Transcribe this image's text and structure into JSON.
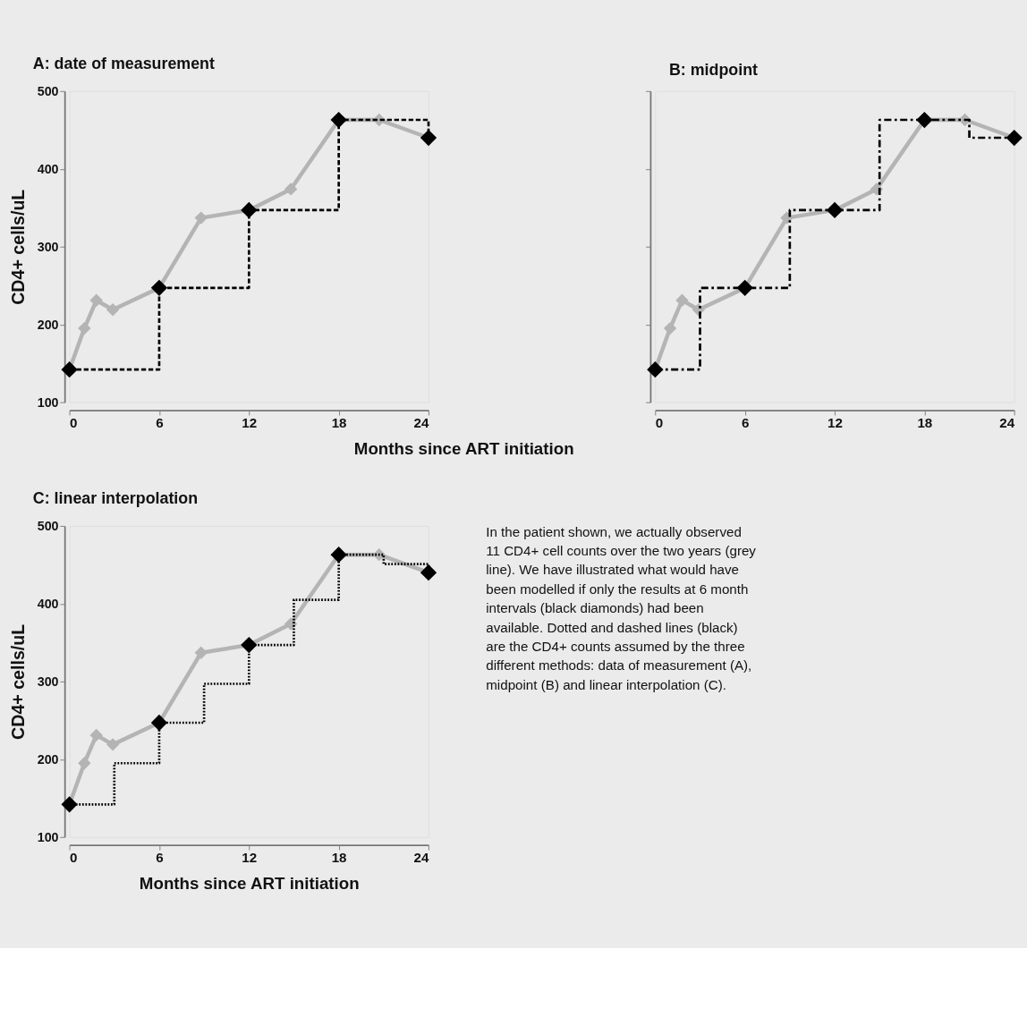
{
  "chart_data": [
    {
      "type": "line",
      "title": "A: date of measurement",
      "xlabel": "Months since ART initiation",
      "ylabel": "CD4+ cells/uL",
      "xlim": [
        0,
        24
      ],
      "xticks": [
        0,
        6,
        12,
        18,
        24
      ],
      "ylim": [
        100,
        500
      ],
      "yticks": [
        100,
        200,
        300,
        400,
        500
      ],
      "grid": false,
      "series": [
        {
          "color": "#b4b4b4",
          "marker": "diamond",
          "line_style": "solid",
          "x": [
            0,
            1,
            1.8,
            2.9,
            6,
            8.8,
            12,
            14.8,
            18,
            20.7,
            24
          ],
          "values": [
            142,
            195,
            231,
            219,
            247,
            337,
            347,
            374,
            463,
            463,
            440
          ]
        },
        {
          "type": "step",
          "color": "#000000",
          "line_style": "dashed",
          "x": [
            0,
            6,
            12,
            18,
            24
          ],
          "values": [
            142,
            247,
            347,
            463,
            440
          ]
        },
        {
          "type": "scatter",
          "color": "#000000",
          "marker": "diamond",
          "x": [
            0,
            6,
            12,
            18,
            24
          ],
          "values": [
            142,
            247,
            347,
            463,
            440
          ]
        }
      ]
    },
    {
      "type": "line",
      "title": "B: midpoint",
      "xlim": [
        0,
        24
      ],
      "xticks": [
        0,
        6,
        12,
        18,
        24
      ],
      "ylim": [
        100,
        500
      ],
      "yticks": [
        100,
        200,
        300,
        400,
        500
      ],
      "tick_labels": "x",
      "grid": false,
      "series": [
        {
          "color": "#b4b4b4",
          "marker": "diamond",
          "line_style": "solid",
          "x": [
            0,
            1,
            1.8,
            2.9,
            6,
            8.8,
            12,
            14.8,
            18,
            20.7,
            24
          ],
          "values": [
            142,
            195,
            231,
            219,
            247,
            337,
            347,
            374,
            463,
            463,
            440
          ]
        },
        {
          "type": "step",
          "color": "#000000",
          "line_style": "dashdot",
          "x": [
            0,
            3,
            9,
            15,
            21,
            24
          ],
          "values": [
            142,
            247,
            347,
            463,
            440,
            440
          ]
        },
        {
          "type": "scatter",
          "color": "#000000",
          "marker": "diamond",
          "x": [
            0,
            6,
            12,
            18,
            24
          ],
          "values": [
            142,
            247,
            347,
            463,
            440
          ]
        }
      ]
    },
    {
      "type": "line",
      "title": "C: linear interpolation",
      "xlabel": "Months since ART initiation",
      "ylabel": "CD4+ cells/uL",
      "xlim": [
        0,
        24
      ],
      "xticks": [
        0,
        6,
        12,
        18,
        24
      ],
      "ylim": [
        100,
        500
      ],
      "yticks": [
        100,
        200,
        300,
        400,
        500
      ],
      "grid": false,
      "annotations": [
        "In the patient shown, we actually observed 11 CD4+ cell counts over the two years (grey line). We have illustrated what would have been modelled if only the results at 6 month intervals (black diamonds) had been available. Dotted and dashed lines (black) are the CD4+ counts assumed by the three different methods: data of measurement (A), midpoint (B) and linear interpolation (C)."
      ],
      "series": [
        {
          "color": "#b4b4b4",
          "marker": "diamond",
          "line_style": "solid",
          "x": [
            0,
            1,
            1.8,
            2.9,
            6,
            8.8,
            12,
            14.8,
            18,
            20.7,
            24
          ],
          "values": [
            142,
            195,
            231,
            219,
            247,
            337,
            347,
            374,
            463,
            463,
            440
          ]
        },
        {
          "type": "step",
          "color": "#000000",
          "line_style": "dotted",
          "x": [
            0,
            3,
            6,
            9,
            12,
            15,
            18,
            21,
            24
          ],
          "values": [
            142,
            195,
            247,
            297,
            347,
            405,
            463,
            451,
            440
          ]
        },
        {
          "type": "scatter",
          "color": "#000000",
          "marker": "diamond",
          "x": [
            0,
            6,
            12,
            18,
            24
          ],
          "values": [
            142,
            247,
            347,
            463,
            440
          ]
        }
      ]
    }
  ]
}
